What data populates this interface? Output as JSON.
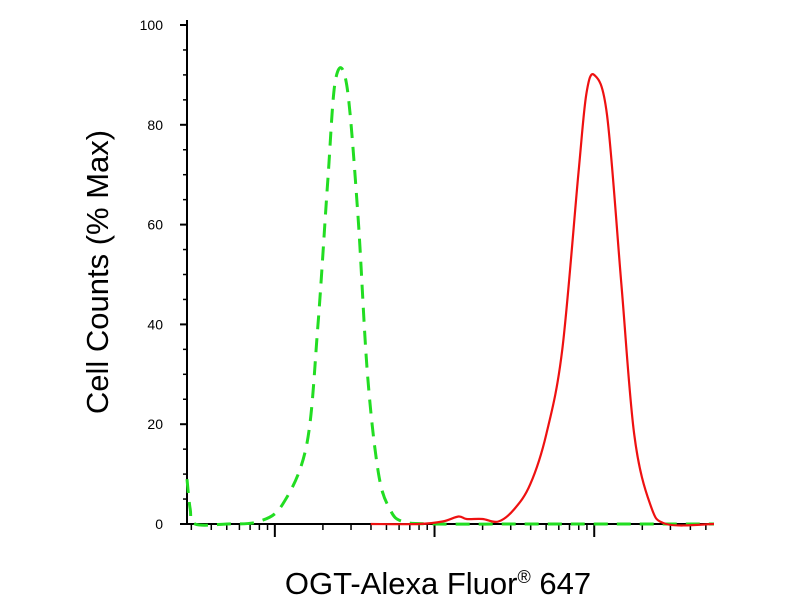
{
  "chart_data": {
    "type": "line",
    "title": "",
    "xlabel": {
      "text": "OGT-Alexa Fluor",
      "sup": "®",
      "suffix": " 647"
    },
    "ylabel": "Cell Counts (% Max)",
    "ylim": [
      0,
      100
    ],
    "xlim": [
      -0.55,
      2.75
    ],
    "x_scale": "log",
    "grid": false,
    "y_ticks": [
      0,
      20,
      40,
      60,
      80,
      100
    ],
    "y_tick_labels": [
      "0",
      "20",
      "40",
      "60",
      "80",
      "100"
    ],
    "x_major_ticks": [
      0,
      1,
      2
    ],
    "series": [
      {
        "style": "dashed",
        "color": "#22dd22",
        "x": [
          -0.55,
          -0.53,
          -0.5,
          -0.3,
          -0.1,
          0.05,
          0.2,
          0.27,
          0.33,
          0.38,
          0.45,
          0.52,
          0.58,
          0.65,
          0.72,
          0.8,
          1.0,
          1.5,
          2.0,
          2.4,
          2.75
        ],
        "y": [
          9,
          3,
          0,
          0,
          0.5,
          4,
          16,
          40,
          68,
          89,
          88,
          62,
          30,
          10,
          3,
          0.5,
          0,
          0,
          0,
          0,
          0
        ]
      },
      {
        "style": "solid",
        "color": "#ee1111",
        "x": [
          0.6,
          0.9,
          1.05,
          1.15,
          1.2,
          1.3,
          1.4,
          1.5,
          1.6,
          1.7,
          1.8,
          1.9,
          1.95,
          2.0,
          2.08,
          2.17,
          2.25,
          2.35,
          2.45,
          2.75
        ],
        "y": [
          0,
          0,
          0.5,
          1.5,
          1,
          1,
          0.5,
          3,
          8,
          18,
          35,
          70,
          86,
          90,
          82,
          48,
          18,
          4,
          0,
          0
        ]
      }
    ]
  }
}
